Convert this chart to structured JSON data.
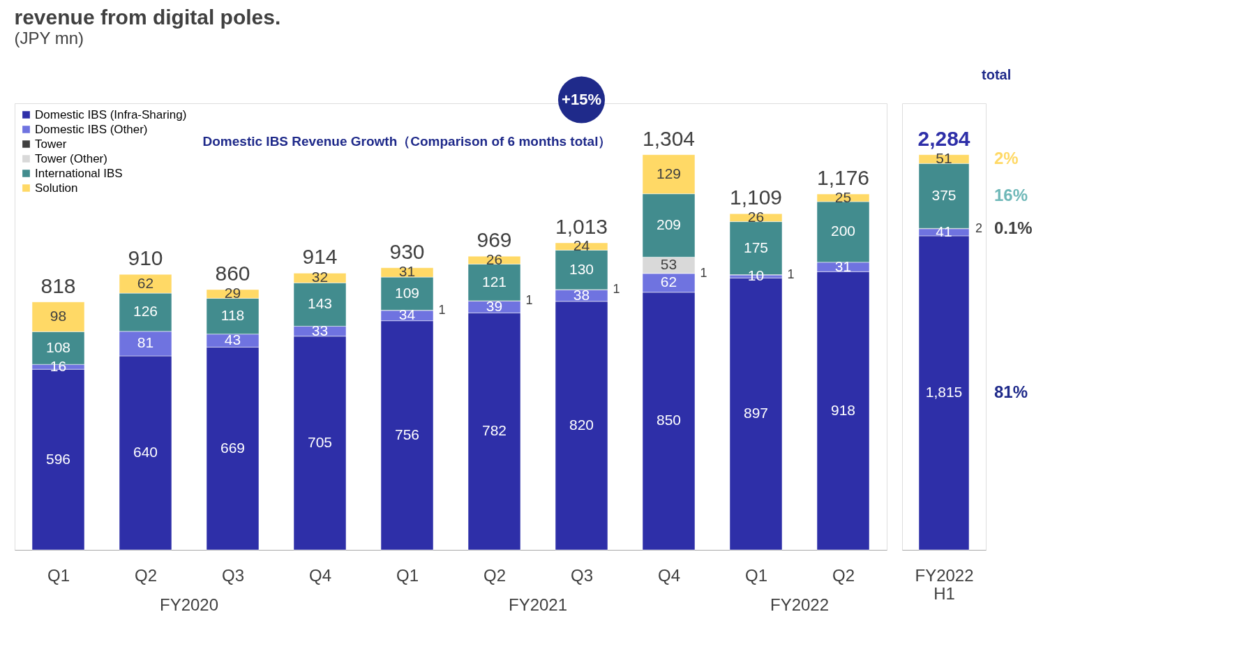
{
  "chart_data": [
    {
      "type": "bar",
      "stacked": true,
      "title": "revenue from digital poles.",
      "subtitle": "(JPY mn)",
      "categories": [
        "Q1",
        "Q2",
        "Q3",
        "Q4",
        "Q1",
        "Q2",
        "Q3",
        "Q4",
        "Q1",
        "Q2"
      ],
      "legend": "top left",
      "data_labels": true,
      "series": [
        {
          "name": "Domestic IBS (Infra-Sharing)",
          "color": "#2e2fa8",
          "values": [
            596,
            640,
            669,
            705,
            756,
            782,
            820,
            850,
            897,
            918
          ]
        },
        {
          "name": "Domestic IBS (Other)",
          "color": "#6f73e0",
          "values": [
            16,
            81,
            43,
            33,
            34,
            39,
            38,
            62,
            10,
            31
          ]
        },
        {
          "name": "Tower",
          "color": "#404040",
          "values": [
            null,
            null,
            null,
            null,
            1,
            1,
            1,
            1,
            1,
            null
          ]
        },
        {
          "name": "Tower (Other)",
          "color": "#d9d9d9",
          "values": [
            null,
            null,
            null,
            null,
            null,
            null,
            null,
            53,
            null,
            null
          ]
        },
        {
          "name": "International IBS",
          "color": "#428c8e",
          "values": [
            108,
            126,
            118,
            143,
            109,
            121,
            130,
            209,
            175,
            200
          ]
        },
        {
          "name": "Solution",
          "color": "#ffd966",
          "values": [
            98,
            62,
            29,
            32,
            31,
            26,
            24,
            129,
            26,
            25
          ]
        }
      ],
      "totals": [
        "818",
        "910",
        "860",
        "914",
        "930",
        "969",
        "1,013",
        "1,304",
        "1,109",
        "1,176"
      ],
      "annotations": [
        "FY2020",
        "FY2021",
        "FY2022",
        "+15%",
        "Domestic IBS Revenue Growth（Comparison of 6 months total）"
      ]
    },
    {
      "type": "bar",
      "stacked": true,
      "categories": [
        "FY2022 H1"
      ],
      "data_labels": true,
      "series": [
        {
          "color": "#2e2fa8",
          "values": [
            1815
          ],
          "value_labels": [
            "1,815"
          ]
        },
        {
          "color": "#6f73e0",
          "values": [
            41
          ]
        },
        {
          "color": "#404040",
          "values": [
            2
          ]
        },
        {
          "color": "#d9d9d9",
          "values": [
            null
          ]
        },
        {
          "color": "#428c8e",
          "values": [
            375
          ]
        },
        {
          "color": "#ffd966",
          "values": [
            51
          ]
        }
      ],
      "totals": [
        "2,284"
      ],
      "annotations": [
        "total",
        "2%",
        "16%",
        "0.1%",
        "81%"
      ]
    }
  ]
}
